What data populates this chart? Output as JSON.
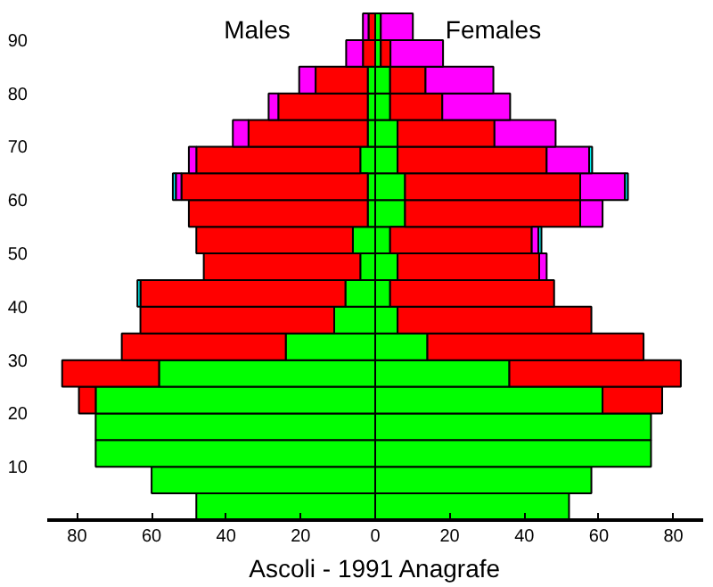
{
  "chart_data": {
    "type": "bar",
    "orientation": "horizontal",
    "stacked": true,
    "xlabel": "Ascoli - 1991 Anagrafe",
    "annotations": [
      "Males",
      "Females"
    ],
    "x": [
      2.5,
      7.5,
      12.5,
      17.5,
      22.5,
      27.5,
      32.5,
      37.5,
      42.5,
      47.5,
      52.5,
      57.5,
      62.5,
      67.5,
      72.5,
      77.5,
      82.5,
      87.5,
      92.5
    ],
    "xlim": [
      -88,
      88
    ],
    "xticks": [
      {
        "value": -80,
        "label": "80"
      },
      {
        "value": -60,
        "label": "60"
      },
      {
        "value": -40,
        "label": "40"
      },
      {
        "value": -20,
        "label": "20"
      },
      0,
      20,
      40,
      60,
      80
    ],
    "ylim": [
      0,
      96
    ],
    "yticks": [
      10,
      20,
      30,
      40,
      50,
      60,
      70,
      80,
      90
    ],
    "grid": false,
    "series": [
      {
        "color": "#00ff00",
        "values": [
          -48,
          -60,
          -75,
          -75,
          -75,
          -58,
          -24,
          -11,
          -8,
          -4,
          -6,
          -2,
          -2,
          -4,
          -2,
          -2,
          -2,
          null,
          null
        ]
      },
      {
        "color": "#ff0000",
        "values": [
          null,
          null,
          null,
          null,
          -4.5,
          -26,
          -44,
          -52,
          -55,
          -42,
          -42,
          -48,
          -50,
          -44,
          -32,
          -24,
          -14,
          -3.3,
          -1.8
        ]
      },
      {
        "color": "#ff00ff",
        "values": [
          null,
          null,
          null,
          null,
          null,
          null,
          null,
          null,
          null,
          null,
          null,
          null,
          -1.5,
          -2,
          -4.2,
          -2.6,
          -4.4,
          -4.5,
          -1.5
        ]
      },
      {
        "color": "#00ffff",
        "values": [
          null,
          null,
          null,
          null,
          null,
          null,
          null,
          null,
          -0.8,
          null,
          null,
          null,
          -0.8,
          null,
          null,
          null,
          null,
          null,
          null
        ]
      },
      {
        "color": "#00ff00",
        "values": [
          52,
          58,
          74,
          74,
          61,
          36,
          14,
          6,
          4,
          6,
          4,
          8,
          8,
          6,
          6,
          4,
          4,
          1.5,
          1.5
        ]
      },
      {
        "color": "#ff0000",
        "values": [
          null,
          null,
          null,
          null,
          16,
          46,
          58,
          52,
          44,
          38,
          38,
          47,
          47,
          40,
          26,
          14,
          9.5,
          2.6,
          null
        ]
      },
      {
        "color": "#ff00ff",
        "values": [
          null,
          null,
          null,
          null,
          null,
          null,
          null,
          null,
          null,
          2,
          1.8,
          6,
          12,
          11.4,
          16.4,
          18.2,
          18.2,
          14.1,
          8.6
        ]
      },
      {
        "color": "#00ffff",
        "values": [
          null,
          null,
          null,
          null,
          null,
          null,
          null,
          null,
          null,
          null,
          0.8,
          null,
          0.8,
          0.8,
          null,
          null,
          null,
          null,
          null
        ]
      }
    ]
  }
}
